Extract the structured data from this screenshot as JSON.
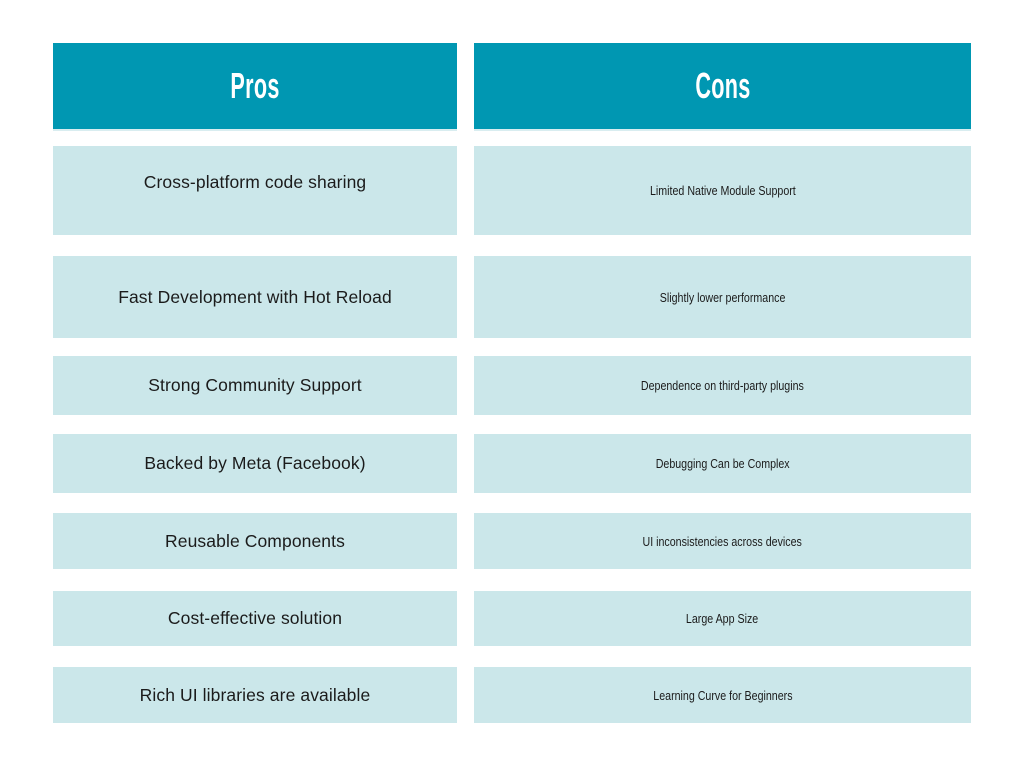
{
  "colors": {
    "page_bg": "#ffffff",
    "header_bg": "#0097b2",
    "header_underline": "#d9edf0",
    "row_bg": "#cbe7ea",
    "header_text": "#ffffff",
    "pros_text": "#1b1b1b",
    "cons_text": "#1b1b1b"
  },
  "comparison": {
    "pros": {
      "header": "Pros",
      "items": [
        "Cross-platform code sharing",
        "Fast Development with Hot Reload",
        "Strong Community Support",
        "Backed by Meta (Facebook)",
        "Reusable Components",
        "Cost-effective solution",
        "Rich UI libraries are available"
      ]
    },
    "cons": {
      "header": "Cons",
      "items": [
        "Limited Native Module Support",
        "Slightly lower performance",
        "Dependence on third-party plugins",
        "Debugging Can be Complex",
        "UI inconsistencies across devices",
        "Large App Size",
        "Learning Curve for Beginners"
      ]
    }
  }
}
